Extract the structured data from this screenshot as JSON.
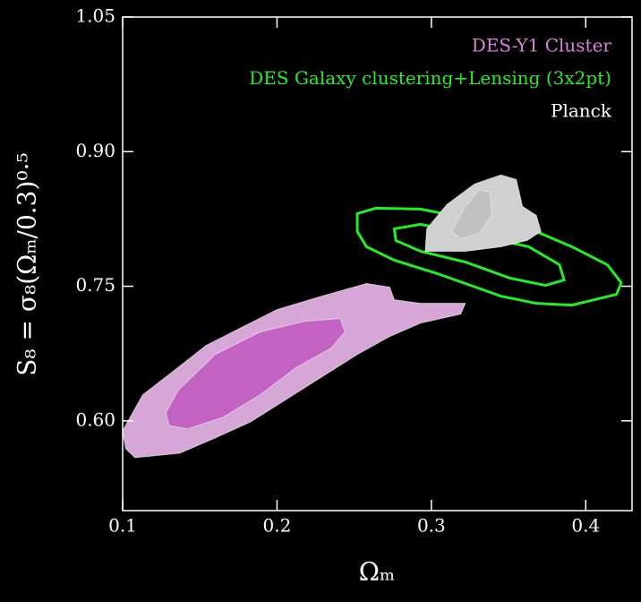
{
  "chart_data": {
    "type": "contour",
    "xlabel": "Ωₘ",
    "ylabel": "S₈ = σ₈(Ωₘ/0.3)⁰·⁵",
    "xlim": [
      0.1,
      0.43
    ],
    "ylim": [
      0.5,
      1.05
    ],
    "xticks": [
      0.1,
      0.2,
      0.3,
      0.4
    ],
    "yticks": [
      {
        "value": 0.6,
        "label": "0.60"
      },
      0.75,
      {
        "value": 0.9,
        "label": "0.90"
      },
      1.05
    ],
    "legend": "upper right",
    "series": [
      {
        "name": "DES-Y1 Cluster",
        "color": "#da82da",
        "contours": [
          {
            "color": "#d6a6d6",
            "x": [
              0.1,
              0.113,
              0.134,
              0.154,
              0.177,
              0.2,
              0.229,
              0.258,
              0.273,
              0.276,
              0.293,
              0.322,
              0.319,
              0.293,
              0.273,
              0.252,
              0.229,
              0.206,
              0.183,
              0.16,
              0.137,
              0.108,
              0.102
            ],
            "y": [
              0.589,
              0.629,
              0.657,
              0.684,
              0.704,
              0.724,
              0.739,
              0.753,
              0.749,
              0.735,
              0.731,
              0.731,
              0.719,
              0.709,
              0.694,
              0.674,
              0.649,
              0.624,
              0.599,
              0.581,
              0.564,
              0.559,
              0.569
            ]
          },
          {
            "color": "#c462c4",
            "x": [
              0.128,
              0.136,
              0.16,
              0.189,
              0.218,
              0.241,
              0.244,
              0.235,
              0.212,
              0.189,
              0.165,
              0.142,
              0.13
            ],
            "y": [
              0.609,
              0.634,
              0.674,
              0.699,
              0.711,
              0.714,
              0.699,
              0.681,
              0.659,
              0.629,
              0.604,
              0.591,
              0.595
            ]
          }
        ]
      },
      {
        "name": "DES Galaxy clustering+Lensing (3x2pt)",
        "color": "#22ee22",
        "fill": false,
        "contours": [
          {
            "color": "#22ee22",
            "x": [
              0.252,
              0.264,
              0.293,
              0.328,
              0.368,
              0.391,
              0.414,
              0.423,
              0.42,
              0.391,
              0.368,
              0.345,
              0.304,
              0.276,
              0.258,
              0.252
            ],
            "y": [
              0.831,
              0.837,
              0.836,
              0.824,
              0.811,
              0.794,
              0.774,
              0.754,
              0.741,
              0.729,
              0.731,
              0.739,
              0.764,
              0.779,
              0.794,
              0.811
            ]
          },
          {
            "color": "#22ee22",
            "x": [
              0.276,
              0.293,
              0.328,
              0.363,
              0.383,
              0.386,
              0.374,
              0.351,
              0.322,
              0.293,
              0.277
            ],
            "y": [
              0.814,
              0.819,
              0.807,
              0.794,
              0.774,
              0.757,
              0.751,
              0.759,
              0.777,
              0.789,
              0.801
            ]
          }
        ]
      },
      {
        "name": "Planck",
        "color": "#ffffff",
        "contours": [
          {
            "color": "#d0d0d0",
            "x": [
              0.296,
              0.297,
              0.31,
              0.328,
              0.345,
              0.355,
              0.359,
              0.368,
              0.371,
              0.362,
              0.345,
              0.322
            ],
            "y": [
              0.789,
              0.814,
              0.841,
              0.864,
              0.874,
              0.869,
              0.839,
              0.829,
              0.811,
              0.801,
              0.794,
              0.789
            ]
          },
          {
            "color": "#c0c0c0",
            "x": [
              0.313,
              0.322,
              0.331,
              0.338,
              0.339,
              0.331,
              0.319
            ],
            "y": [
              0.811,
              0.839,
              0.857,
              0.855,
              0.829,
              0.809,
              0.803
            ]
          }
        ]
      }
    ]
  }
}
